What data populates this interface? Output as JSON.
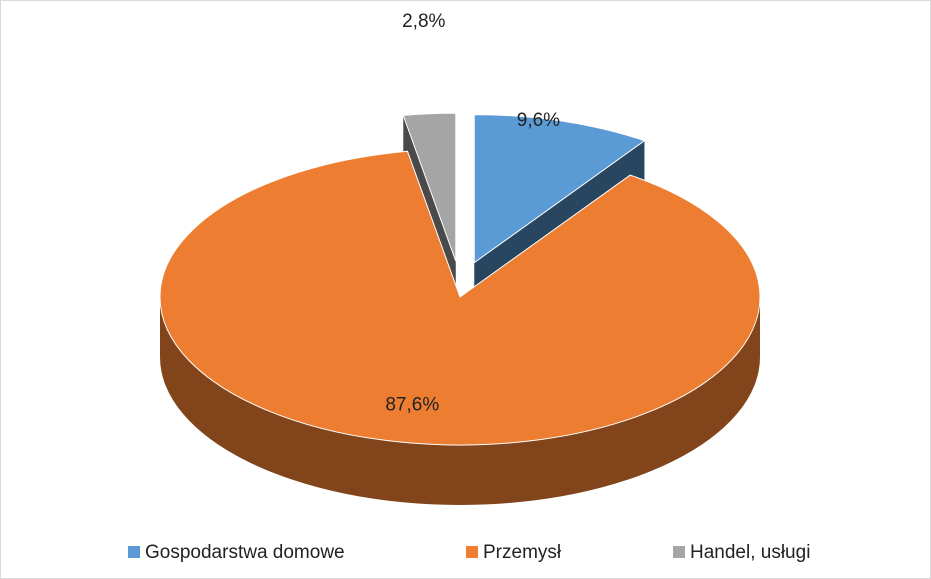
{
  "chart_data": {
    "type": "pie3d",
    "categories": [
      "Gospodarstwa domowe",
      "Przemysł",
      "Handel, usługi"
    ],
    "values": [
      9.6,
      87.6,
      2.8
    ],
    "value_labels": [
      "9,6%",
      "87,6%",
      "2,8%"
    ],
    "colors": [
      "#5b9bd5",
      "#ed7d31",
      "#a5a5a5"
    ],
    "legend": "bottom"
  }
}
